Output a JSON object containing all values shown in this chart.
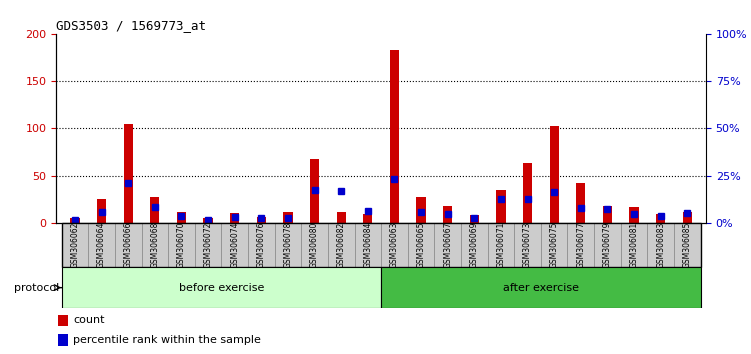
{
  "title": "GDS3503 / 1569773_at",
  "categories": [
    "GSM306062",
    "GSM306064",
    "GSM306066",
    "GSM306068",
    "GSM306070",
    "GSM306072",
    "GSM306074",
    "GSM306076",
    "GSM306078",
    "GSM306080",
    "GSM306082",
    "GSM306084",
    "GSM306063",
    "GSM306065",
    "GSM306067",
    "GSM306069",
    "GSM306071",
    "GSM306073",
    "GSM306075",
    "GSM306077",
    "GSM306079",
    "GSM306081",
    "GSM306083",
    "GSM306085"
  ],
  "count_values": [
    5,
    25,
    105,
    27,
    12,
    5,
    11,
    6,
    12,
    68,
    12,
    10,
    183,
    28,
    18,
    8,
    35,
    63,
    102,
    42,
    18,
    17,
    9,
    12
  ],
  "percentile_values": [
    3,
    12,
    42,
    17,
    7,
    3,
    6,
    5,
    5,
    35,
    34,
    13,
    47,
    12,
    9,
    5,
    25,
    25,
    33,
    16,
    15,
    10,
    7,
    11
  ],
  "before_exercise_count": 12,
  "after_exercise_count": 12,
  "red_color": "#cc0000",
  "blue_color": "#0000cc",
  "bar_width": 0.35,
  "ylim_left": [
    0,
    200
  ],
  "ylim_right": [
    0,
    100
  ],
  "yticks_left": [
    0,
    50,
    100,
    150,
    200
  ],
  "ytick_labels_left": [
    "0",
    "50",
    "100",
    "150",
    "200"
  ],
  "yticks_right": [
    0,
    25,
    50,
    75,
    100
  ],
  "ytick_labels_right": [
    "0%",
    "25%",
    "50%",
    "75%",
    "100%"
  ],
  "grid_color": "#000000",
  "before_color": "#ccffcc",
  "after_color": "#44bb44",
  "xticklabel_bg": "#cccccc",
  "protocol_label": "protocol",
  "before_label": "before exercise",
  "after_label": "after exercise",
  "legend_count": "count",
  "legend_percentile": "percentile rank within the sample"
}
